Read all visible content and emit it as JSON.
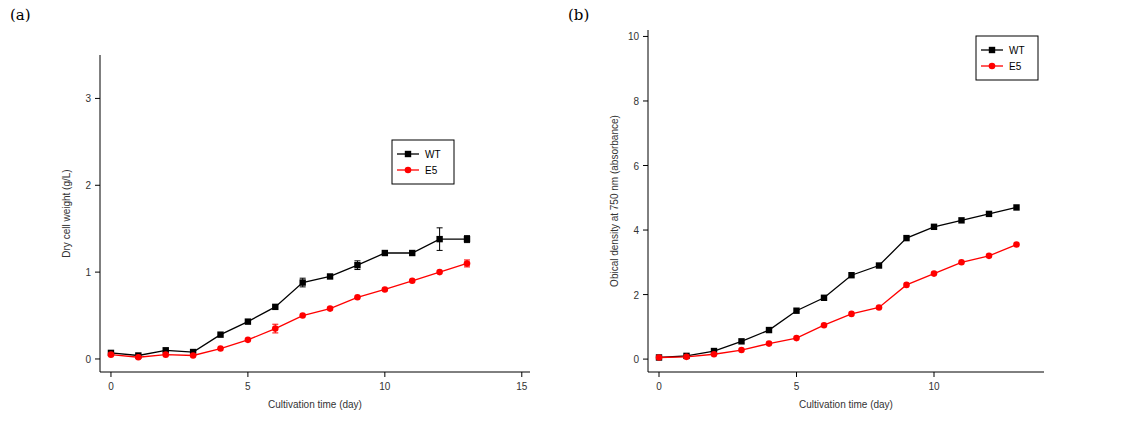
{
  "chart_data": [
    {
      "type": "line",
      "title": "(a)",
      "x_label": "Cultivation time (day)",
      "y_label": "Dry cell weight (g/L)",
      "x": [
        0,
        1,
        2,
        3,
        4,
        5,
        6,
        7,
        8,
        9,
        10,
        11,
        12,
        13
      ],
      "xlim": [
        -0.4,
        15.3
      ],
      "xticks": [
        0,
        5,
        10,
        15
      ],
      "ylim": [
        -0.15,
        3.5
      ],
      "yticks": [
        0,
        1,
        2,
        3
      ],
      "legend": "right",
      "grid": false,
      "series": [
        {
          "name": "WT",
          "color": "#000000",
          "marker": "square",
          "values": [
            0.07,
            0.04,
            0.1,
            0.08,
            0.28,
            0.43,
            0.6,
            0.88,
            0.95,
            1.08,
            1.22,
            1.22,
            1.38,
            1.38
          ],
          "errors": [
            null,
            null,
            null,
            null,
            null,
            null,
            null,
            0.05,
            null,
            0.05,
            null,
            null,
            0.13,
            0.04
          ]
        },
        {
          "name": "E5",
          "color": "#ff0000",
          "marker": "circle",
          "values": [
            0.05,
            0.02,
            0.05,
            0.04,
            0.12,
            0.22,
            0.35,
            0.5,
            0.58,
            0.71,
            0.8,
            0.9,
            1.0,
            1.1
          ],
          "errors": [
            null,
            null,
            null,
            null,
            null,
            null,
            0.05,
            null,
            null,
            null,
            null,
            null,
            null,
            0.04
          ]
        }
      ]
    },
    {
      "type": "line",
      "title": "(b)",
      "x_label": "Cultivation time (day)",
      "y_label": "Obical density at 750 nm (absorbance)",
      "x": [
        0,
        1,
        2,
        3,
        4,
        5,
        6,
        7,
        8,
        9,
        10,
        11,
        12,
        13
      ],
      "xlim": [
        -0.4,
        14
      ],
      "xticks": [
        0,
        5,
        10
      ],
      "ylim": [
        -0.4,
        10.2
      ],
      "yticks": [
        0,
        2,
        4,
        6,
        8,
        10
      ],
      "legend": "upper right",
      "grid": false,
      "series": [
        {
          "name": "WT",
          "color": "#000000",
          "marker": "square",
          "values": [
            0.05,
            0.1,
            0.25,
            0.55,
            0.9,
            1.5,
            1.9,
            2.6,
            2.9,
            3.75,
            4.1,
            4.3,
            4.5,
            4.7
          ]
        },
        {
          "name": "E5",
          "color": "#ff0000",
          "marker": "circle",
          "values": [
            0.05,
            0.07,
            0.15,
            0.28,
            0.48,
            0.65,
            1.05,
            1.4,
            1.6,
            2.3,
            2.65,
            3.0,
            3.2,
            3.55
          ]
        }
      ]
    }
  ]
}
